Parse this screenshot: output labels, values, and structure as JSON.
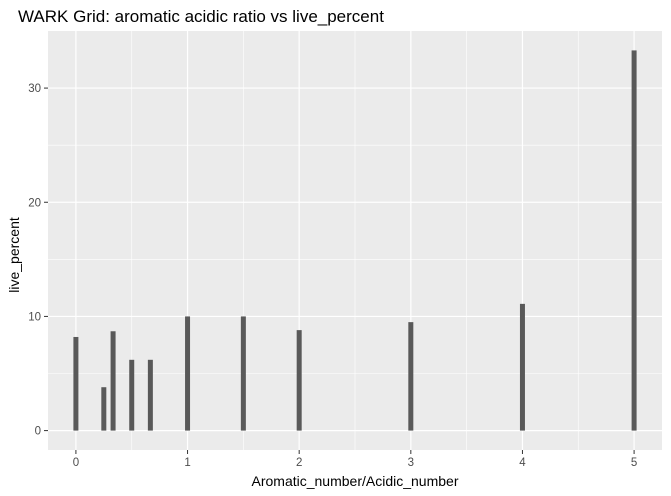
{
  "chart_data": {
    "type": "bar",
    "title": "WARK Grid: aromatic acidic ratio vs live_percent",
    "xlabel": "Aromatic_number/Acidic_number",
    "ylabel": "live_percent",
    "x": [
      0,
      0.25,
      0.333,
      0.5,
      0.667,
      1,
      1.5,
      2,
      3,
      4,
      5
    ],
    "values": [
      8.2,
      3.8,
      8.7,
      6.2,
      6.2,
      10.0,
      10.0,
      8.8,
      9.5,
      11.1,
      33.3
    ],
    "xlim": [
      -0.25,
      5.25
    ],
    "ylim": [
      -1.7,
      35.0
    ],
    "xticks": [
      0,
      1,
      2,
      3,
      4,
      5
    ],
    "xtick_labels": [
      "0",
      "1",
      "2",
      "3",
      "4",
      "5"
    ],
    "yticks": [
      0,
      10,
      20,
      30
    ],
    "ytick_labels": [
      "0",
      "10",
      "20",
      "30"
    ],
    "grid": true,
    "legend": "none",
    "panel_color": "#EBEBEB",
    "grid_color": "#FFFFFF",
    "bar_color": "#595959"
  }
}
